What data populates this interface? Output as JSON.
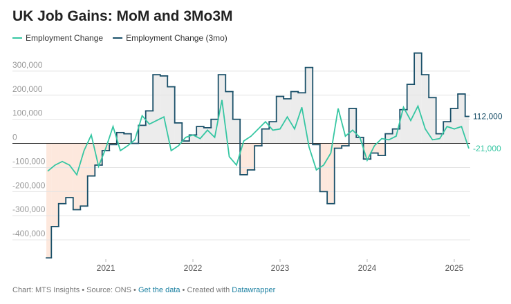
{
  "chart_data": {
    "type": "line",
    "title": "UK Job Gains: MoM and 3Mo3M",
    "x": [
      2020.333,
      2020.417,
      2020.5,
      2020.583,
      2020.667,
      2020.75,
      2020.833,
      2020.917,
      2021,
      2021.083,
      2021.167,
      2021.25,
      2021.333,
      2021.417,
      2021.5,
      2021.583,
      2021.667,
      2021.75,
      2021.833,
      2021.917,
      2022,
      2022.083,
      2022.167,
      2022.25,
      2022.333,
      2022.417,
      2022.5,
      2022.583,
      2022.667,
      2022.75,
      2022.833,
      2022.917,
      2023,
      2023.083,
      2023.167,
      2023.25,
      2023.333,
      2023.417,
      2023.5,
      2023.583,
      2023.667,
      2023.75,
      2023.833,
      2023.917,
      2024,
      2024.083,
      2024.167,
      2024.25,
      2024.333,
      2024.417,
      2024.5,
      2024.583,
      2024.667,
      2024.75,
      2024.833,
      2024.917,
      2025,
      2025.083,
      2025.167
    ],
    "series": [
      {
        "name": "Employment Change",
        "color": "#35c6a2",
        "style": "line",
        "values": [
          -115000,
          -90000,
          -75000,
          -90000,
          -130000,
          -30000,
          35000,
          -95000,
          -20000,
          70000,
          -30000,
          -10000,
          15000,
          115000,
          80000,
          95000,
          110000,
          -30000,
          -10000,
          25000,
          35000,
          20000,
          55000,
          25000,
          180000,
          -55000,
          -90000,
          10000,
          30000,
          60000,
          90000,
          55000,
          60000,
          110000,
          60000,
          150000,
          -15000,
          -110000,
          -90000,
          -40000,
          145000,
          30000,
          55000,
          25000,
          -70000,
          -10000,
          20000,
          15000,
          30000,
          150000,
          95000,
          155000,
          60000,
          15000,
          20000,
          70000,
          60000,
          70000,
          -21000
        ],
        "value_labels": [
          null,
          null,
          null,
          null,
          null,
          null,
          null,
          null,
          null,
          null,
          null,
          null,
          null,
          null,
          null,
          null,
          null,
          null,
          null,
          null,
          null,
          null,
          null,
          null,
          null,
          null,
          null,
          null,
          null,
          null,
          null,
          null,
          null,
          null,
          null,
          null,
          null,
          null,
          null,
          null,
          null,
          null,
          null,
          null,
          null,
          null,
          null,
          null,
          null,
          null,
          null,
          null,
          null,
          null,
          null,
          null,
          null,
          null,
          "-21,000"
        ]
      },
      {
        "name": "Employment Change (3mo)",
        "color": "#1a5069",
        "style": "step",
        "values": [
          -475000,
          -345000,
          -250000,
          -225000,
          -275000,
          -260000,
          -135000,
          -90000,
          -30000,
          -5000,
          45000,
          40000,
          0,
          75000,
          135000,
          285000,
          280000,
          235000,
          85000,
          10000,
          35000,
          70000,
          65000,
          100000,
          285000,
          215000,
          100000,
          -130000,
          -110000,
          -10000,
          60000,
          90000,
          195000,
          185000,
          215000,
          210000,
          315000,
          -5000,
          -200000,
          -250000,
          -20000,
          -10000,
          145000,
          25000,
          -65000,
          -40000,
          -50000,
          40000,
          60000,
          140000,
          245000,
          375000,
          285000,
          190000,
          40000,
          90000,
          145000,
          205000,
          112000
        ],
        "value_labels": [
          null,
          null,
          null,
          null,
          null,
          null,
          null,
          null,
          null,
          null,
          null,
          null,
          null,
          null,
          null,
          null,
          null,
          null,
          null,
          null,
          null,
          null,
          null,
          null,
          null,
          null,
          null,
          null,
          null,
          null,
          null,
          null,
          null,
          null,
          null,
          null,
          null,
          null,
          null,
          null,
          null,
          null,
          null,
          null,
          null,
          null,
          null,
          null,
          null,
          null,
          null,
          null,
          null,
          null,
          null,
          null,
          null,
          null,
          "112,000"
        ]
      }
    ],
    "positive_fill": "#e9e9e9",
    "negative_fill": "#fde4d7",
    "xlim": [
      2020.333,
      2025.167
    ],
    "xticks": [
      2021,
      2022,
      2023,
      2024,
      2025
    ],
    "ylim": [
      -480000,
      380000
    ],
    "yticks": [
      {
        "value": -400000,
        "label": "-400,000"
      },
      {
        "value": -300000,
        "label": "-300,000"
      },
      {
        "value": -200000,
        "label": "-200,000"
      },
      {
        "value": -100000,
        "label": "-100,000"
      },
      0,
      {
        "value": 100000,
        "label": "100,000"
      },
      {
        "value": 200000,
        "label": "200,000"
      },
      {
        "value": 300000,
        "label": "300,000"
      }
    ],
    "grid": true,
    "legend": "top-left",
    "footer": {
      "credit": "Chart: MTS Insights • Source: ONS •",
      "data_link": "Get the data",
      "created": "• Created with",
      "tool": "Datawrapper"
    }
  }
}
